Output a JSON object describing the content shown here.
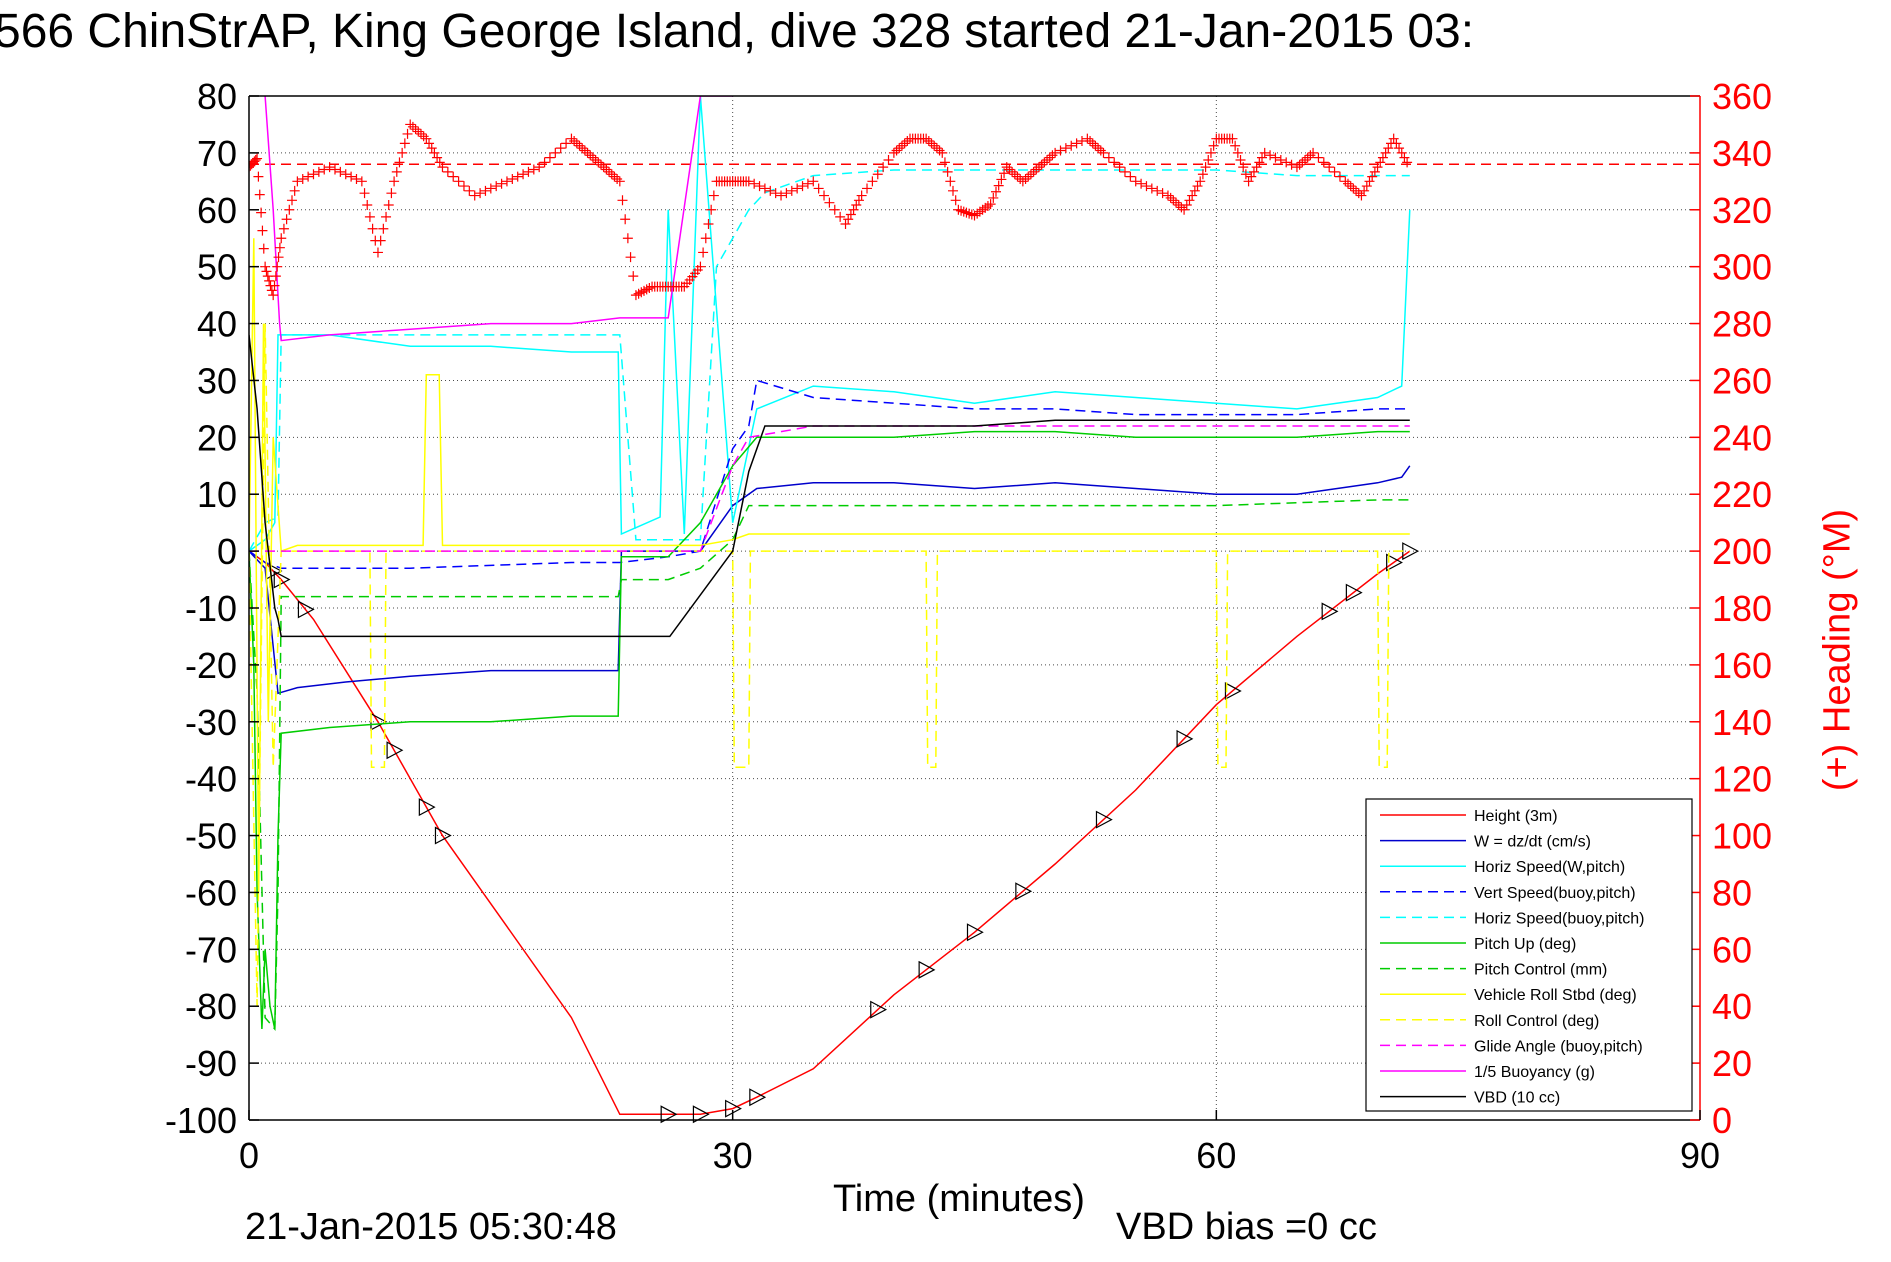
{
  "title": "566 ChinStrAP, King George Island, dive 328 started 21-Jan-2015 03:",
  "footer_left": "21-Jan-2015 05:30:48",
  "footer_right": "VBD bias =0 cc",
  "colors": {
    "height": "#ff0000",
    "w": "#0000cc",
    "horiz_w": "#00ffff",
    "vert_buoy": "#0000ff",
    "horiz_buoy": "#00ffff",
    "pitch_up": "#00cc00",
    "pitch_ctrl": "#00cc00",
    "roll": "#ffff00",
    "roll_ctrl": "#ffff00",
    "glide": "#ff00ff",
    "buoy": "#ff00ff",
    "vbd": "#000000",
    "heading": "#ff0000"
  },
  "chart_data": {
    "type": "line",
    "title": "566 ChinStrAP, King George Island, dive 328 started 21-Jan-2015 03:",
    "xlabel": "Time (minutes)",
    "ylabel_right": "(+) Heading (°M)",
    "xlim": [
      0,
      90
    ],
    "ylim": [
      -100,
      80
    ],
    "ylim_right": [
      0,
      360
    ],
    "x_ticks": [
      "0",
      "30",
      "60",
      "90"
    ],
    "y_ticks": [
      "80",
      "70",
      "60",
      "50",
      "40",
      "30",
      "20",
      "10",
      "0",
      "-10",
      "-20",
      "-30",
      "-40",
      "-50",
      "-60",
      "-70",
      "-80",
      "-90",
      "-100"
    ],
    "y_ticks_right": [
      "360",
      "340",
      "320",
      "300",
      "280",
      "260",
      "240",
      "220",
      "200",
      "180",
      "160",
      "140",
      "120",
      "100",
      "80",
      "60",
      "40",
      "20",
      "0"
    ],
    "grid": true,
    "legend_position": "bottom-right",
    "legend": [
      "Height (3m)",
      "W = dz/dt (cm/s)",
      "Horiz Speed(W,pitch)",
      "Vert Speed(buoy,pitch)",
      "Horiz Speed(buoy,pitch)",
      "Pitch Up (deg)",
      "Pitch Control (mm)",
      "Vehicle Roll Stbd (deg)",
      "Roll Control (deg)",
      "Glide Angle (buoy,pitch)",
      "1/5 Buoyancy (g)",
      "VBD (10 cc)"
    ],
    "series": [
      {
        "name": "Height (3m)",
        "x": [
          0,
          1,
          2,
          4,
          8,
          12,
          16,
          20,
          23,
          26,
          28,
          30,
          31.5,
          35,
          40,
          45,
          50,
          55,
          60,
          65,
          70,
          72
        ],
        "y": [
          0,
          -2,
          -5,
          -12,
          -30,
          -50,
          -66,
          -82,
          -99,
          -99,
          -99,
          -98,
          -96,
          -91,
          -78,
          -67,
          -55,
          -42,
          -27,
          -15,
          -4,
          0
        ]
      },
      {
        "name": "W = dz/dt (cm/s)",
        "x": [
          0,
          1,
          1.8,
          3,
          6,
          10,
          15,
          20,
          22.9,
          23.1,
          26,
          28,
          30,
          31.5,
          35,
          40,
          45,
          50,
          55,
          60,
          65,
          70,
          71.5,
          72
        ],
        "y": [
          0,
          -3,
          -25,
          -24,
          -23,
          -22,
          -21,
          -21,
          -21,
          0,
          0,
          0,
          8,
          11,
          12,
          12,
          11,
          12,
          11,
          10,
          10,
          12,
          13,
          15
        ]
      },
      {
        "name": "Horiz Speed(W,pitch)",
        "x": [
          0,
          1,
          1.6,
          1.8,
          5,
          10,
          15,
          20,
          22.9,
          23.1,
          25.5,
          26,
          27,
          28,
          30,
          31.5,
          35,
          40,
          45,
          50,
          55,
          60,
          65,
          70,
          71.5,
          72
        ],
        "y": [
          0,
          2,
          5,
          38,
          38,
          36,
          36,
          35,
          35,
          3,
          6,
          60,
          3,
          80,
          5,
          25,
          29,
          28,
          26,
          28,
          27,
          26,
          25,
          27,
          29,
          60
        ]
      },
      {
        "name": "Vert Speed(buoy,pitch)",
        "x": [
          0,
          1,
          2,
          3,
          10,
          20,
          23,
          26,
          28,
          30,
          31,
          31.5,
          35,
          40,
          45,
          50,
          55,
          60,
          65,
          70,
          72
        ],
        "y": [
          0,
          -2,
          -3,
          -3,
          -3,
          -2,
          -2,
          -1,
          0,
          18,
          22,
          30,
          27,
          26,
          25,
          25,
          24,
          24,
          24,
          25,
          25
        ]
      },
      {
        "name": "Horiz Speed(buoy,pitch)",
        "x": [
          0,
          1,
          1.8,
          2,
          10,
          20,
          23,
          24,
          26,
          28,
          29,
          30,
          31,
          32,
          35,
          40,
          45,
          50,
          55,
          60,
          65,
          70,
          72
        ],
        "y": [
          0,
          5,
          6,
          38,
          38,
          38,
          38,
          2,
          2,
          2,
          50,
          55,
          60,
          63,
          66,
          67,
          67,
          67,
          67,
          67,
          66,
          66,
          66
        ]
      },
      {
        "name": "Pitch Up (deg)",
        "x": [
          0,
          0.3,
          0.5,
          0.8,
          1,
          1.3,
          1.6,
          1.8,
          2,
          5,
          10,
          15,
          20,
          22.9,
          23.1,
          26,
          28,
          30,
          31.5,
          35,
          40,
          45,
          50,
          55,
          60,
          65,
          70,
          72
        ],
        "y": [
          0,
          -20,
          -60,
          -84,
          -70,
          -80,
          -84,
          -50,
          -32,
          -31,
          -30,
          -30,
          -29,
          -29,
          -1,
          -1,
          5,
          15,
          20,
          20,
          20,
          21,
          21,
          20,
          20,
          20,
          21,
          21
        ]
      },
      {
        "name": "Pitch Control (mm)",
        "x": [
          0,
          0.5,
          1,
          1.6,
          1.8,
          2,
          5,
          10,
          15,
          20,
          22.9,
          23.1,
          26,
          28,
          30,
          31,
          40,
          50,
          60,
          70,
          72
        ],
        "y": [
          0,
          -25,
          -82,
          -84,
          -60,
          -8,
          -8,
          -8,
          -8,
          -8,
          -8,
          -5,
          -5,
          -3,
          2,
          8,
          8,
          8,
          8,
          9,
          9
        ]
      },
      {
        "name": "Vehicle Roll Stbd (deg)",
        "x": [
          0,
          0.3,
          0.6,
          0.9,
          1.2,
          1.5,
          2,
          3,
          8,
          10.8,
          11,
          11.8,
          12,
          20,
          28,
          30,
          31,
          40,
          50,
          60,
          70,
          72
        ],
        "y": [
          0,
          55,
          -60,
          40,
          -30,
          20,
          0,
          1,
          1,
          1,
          31,
          31,
          1,
          1,
          1,
          2,
          3,
          3,
          3,
          3,
          3,
          3
        ]
      },
      {
        "name": "Roll Control (deg)",
        "x": [
          0,
          0.5,
          1,
          1.5,
          2,
          5,
          7.5,
          7.6,
          8.4,
          8.5,
          30,
          30.1,
          31,
          31.1,
          42,
          42.1,
          42.6,
          42.7,
          60,
          60.1,
          60.6,
          60.7,
          70,
          70.1,
          70.6,
          70.7,
          72
        ],
        "y": [
          0,
          -80,
          40,
          -38,
          0,
          0,
          0,
          -38,
          -38,
          0,
          0,
          -38,
          -38,
          0,
          0,
          -38,
          -38,
          0,
          0,
          -38,
          -38,
          0,
          0,
          -38,
          -38,
          0,
          0
        ]
      },
      {
        "name": "Glide Angle (buoy,pitch)",
        "x": [
          0,
          23,
          28,
          30,
          31,
          35,
          40,
          45,
          50,
          55,
          60,
          65,
          70,
          72
        ],
        "y": [
          0,
          0,
          0,
          15,
          20,
          22,
          22,
          22,
          22,
          22,
          22,
          22,
          22,
          22
        ]
      },
      {
        "name": "1/5 Buoyancy (g)",
        "x": [
          1,
          1.5,
          1.9,
          2,
          5,
          10,
          15,
          20,
          23,
          26,
          28,
          30
        ],
        "y": [
          80,
          60,
          40,
          37,
          38,
          39,
          40,
          40,
          41,
          41,
          80,
          80
        ]
      },
      {
        "name": "VBD (10 cc)",
        "x": [
          0,
          0.5,
          1,
          1.6,
          1.8,
          2,
          22.9,
          23.1,
          25.9,
          26.1,
          30,
          31,
          32,
          35,
          40,
          45,
          50,
          55,
          60,
          65,
          70,
          72
        ],
        "y": [
          38,
          25,
          5,
          -10,
          -12,
          -15,
          -15,
          -15,
          -15,
          -15,
          0,
          14,
          22,
          22,
          22,
          22,
          23,
          23,
          23,
          23,
          23,
          23
        ]
      },
      {
        "name": "Heading",
        "axis": "right",
        "x": [
          0,
          0.5,
          1,
          1.5,
          2,
          3,
          5,
          7,
          8,
          9,
          10,
          11,
          12,
          14,
          16,
          18,
          20,
          21,
          22,
          23,
          24,
          25,
          26,
          27,
          28,
          29,
          30,
          31,
          33,
          35,
          37,
          38,
          40,
          41,
          42,
          43,
          44,
          45,
          46,
          47,
          48,
          49,
          50,
          52,
          53,
          55,
          57,
          58,
          59,
          60,
          61,
          62,
          63,
          65,
          66,
          68,
          69,
          70,
          71,
          72
        ],
        "y": [
          335,
          338,
          300,
          290,
          310,
          330,
          335,
          330,
          305,
          330,
          350,
          345,
          335,
          325,
          330,
          335,
          345,
          340,
          335,
          330,
          290,
          293,
          293,
          293,
          300,
          330,
          330,
          330,
          325,
          330,
          315,
          325,
          340,
          345,
          345,
          340,
          320,
          318,
          322,
          335,
          330,
          335,
          340,
          345,
          340,
          330,
          325,
          320,
          330,
          345,
          345,
          330,
          340,
          335,
          340,
          330,
          325,
          335,
          345,
          335
        ]
      }
    ],
    "heading_mean": 336
  }
}
